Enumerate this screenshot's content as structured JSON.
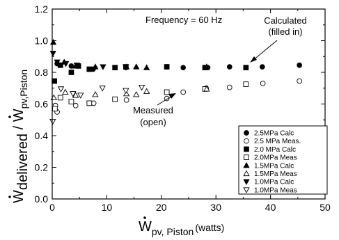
{
  "chart_data": {
    "type": "scatter",
    "title": "",
    "xlim": [
      0,
      50
    ],
    "ylim": [
      0.0,
      1.2
    ],
    "x_ticks": [
      "0",
      "10",
      "20",
      "30",
      "40",
      "50"
    ],
    "y_ticks": [
      "0.0",
      "0.2",
      "0.4",
      "0.6",
      "0.8",
      "1.0",
      "1.2"
    ],
    "xlabel": {
      "symbol": "W",
      "subscript": "pv, Piston",
      "unit": "(watts)"
    },
    "ylabel": {
      "num_symbol": "W",
      "num_sub": "delivered",
      "slash": " / ",
      "den_symbol": "W",
      "den_sub": "pv,Piston"
    },
    "annotations": {
      "frequency": "Frequency = 60 Hz",
      "calculated": [
        "Calculated",
        "(filled in)"
      ],
      "measured": [
        "Measured",
        "(open)"
      ]
    },
    "legend_position": "bottom-right",
    "series": [
      {
        "name": "2.5MPa Calc",
        "marker": "circle",
        "filled": true,
        "points": [
          [
            0.9,
            0.855
          ],
          [
            3.5,
            0.84
          ],
          [
            7.5,
            0.82
          ],
          [
            13.5,
            0.83
          ],
          [
            21,
            0.835
          ],
          [
            24,
            0.83
          ],
          [
            28.5,
            0.83
          ],
          [
            32.5,
            0.835
          ],
          [
            38.5,
            0.835
          ],
          [
            45.3,
            0.845
          ]
        ]
      },
      {
        "name": "2.5 MPa Meas.",
        "marker": "circle",
        "filled": false,
        "points": [
          [
            0.6,
            0.59
          ],
          [
            0.9,
            0.55
          ],
          [
            4.3,
            0.59
          ],
          [
            7.6,
            0.605
          ],
          [
            13.6,
            0.625
          ],
          [
            21,
            0.635
          ],
          [
            24,
            0.675
          ],
          [
            28.2,
            0.7
          ],
          [
            32.5,
            0.705
          ],
          [
            38.6,
            0.73
          ],
          [
            45.3,
            0.745
          ]
        ]
      },
      {
        "name": "2.0 MPa Calc",
        "marker": "square",
        "filled": true,
        "points": [
          [
            0.4,
            0.745
          ],
          [
            1.5,
            0.845
          ],
          [
            3.5,
            0.8
          ],
          [
            4.8,
            0.84
          ],
          [
            6.8,
            0.82
          ],
          [
            11.5,
            0.83
          ],
          [
            13.5,
            0.835
          ],
          [
            21,
            0.835
          ],
          [
            28,
            0.83
          ],
          [
            35.5,
            0.83
          ]
        ]
      },
      {
        "name": "2.0MPa Meas",
        "marker": "square",
        "filled": false,
        "points": [
          [
            0.5,
            0.57
          ],
          [
            1.5,
            0.64
          ],
          [
            3.5,
            0.615
          ],
          [
            6.8,
            0.605
          ],
          [
            11.5,
            0.63
          ],
          [
            21,
            0.675
          ],
          [
            28,
            0.695
          ],
          [
            35.5,
            0.725
          ]
        ]
      },
      {
        "name": "1.5MPa Calc",
        "marker": "triangle-up",
        "filled": true,
        "points": [
          [
            0.2,
            0.99
          ],
          [
            2.2,
            0.865
          ],
          [
            4.3,
            0.84
          ],
          [
            7.9,
            0.835
          ],
          [
            13.6,
            0.835
          ],
          [
            15.4,
            0.835
          ],
          [
            17.3,
            0.83
          ],
          [
            28.3,
            0.835
          ]
        ]
      },
      {
        "name": "1.5MPa Meas",
        "marker": "triangle-up",
        "filled": false,
        "points": [
          [
            0.3,
            0.64
          ],
          [
            2.4,
            0.675
          ],
          [
            4.3,
            0.655
          ],
          [
            7.9,
            0.66
          ],
          [
            13.6,
            0.665
          ],
          [
            15.4,
            0.66
          ],
          [
            17.3,
            0.68
          ],
          [
            28.3,
            0.695
          ]
        ]
      },
      {
        "name": "1.0MPa Calc",
        "marker": "triangle-down",
        "filled": true,
        "points": [
          [
            0.15,
            0.92
          ],
          [
            0.9,
            0.865
          ],
          [
            2.5,
            0.855
          ],
          [
            4.5,
            0.845
          ],
          [
            9.3,
            0.835
          ],
          [
            13.5,
            0.835
          ]
        ]
      },
      {
        "name": "1.0MPa Meas",
        "marker": "triangle-down",
        "filled": false,
        "points": [
          [
            0.1,
            0.49
          ],
          [
            1.6,
            0.695
          ],
          [
            3.8,
            0.665
          ],
          [
            5.2,
            0.655
          ],
          [
            9.2,
            0.7
          ],
          [
            13.5,
            0.685
          ],
          [
            16.4,
            0.705
          ]
        ]
      }
    ]
  }
}
